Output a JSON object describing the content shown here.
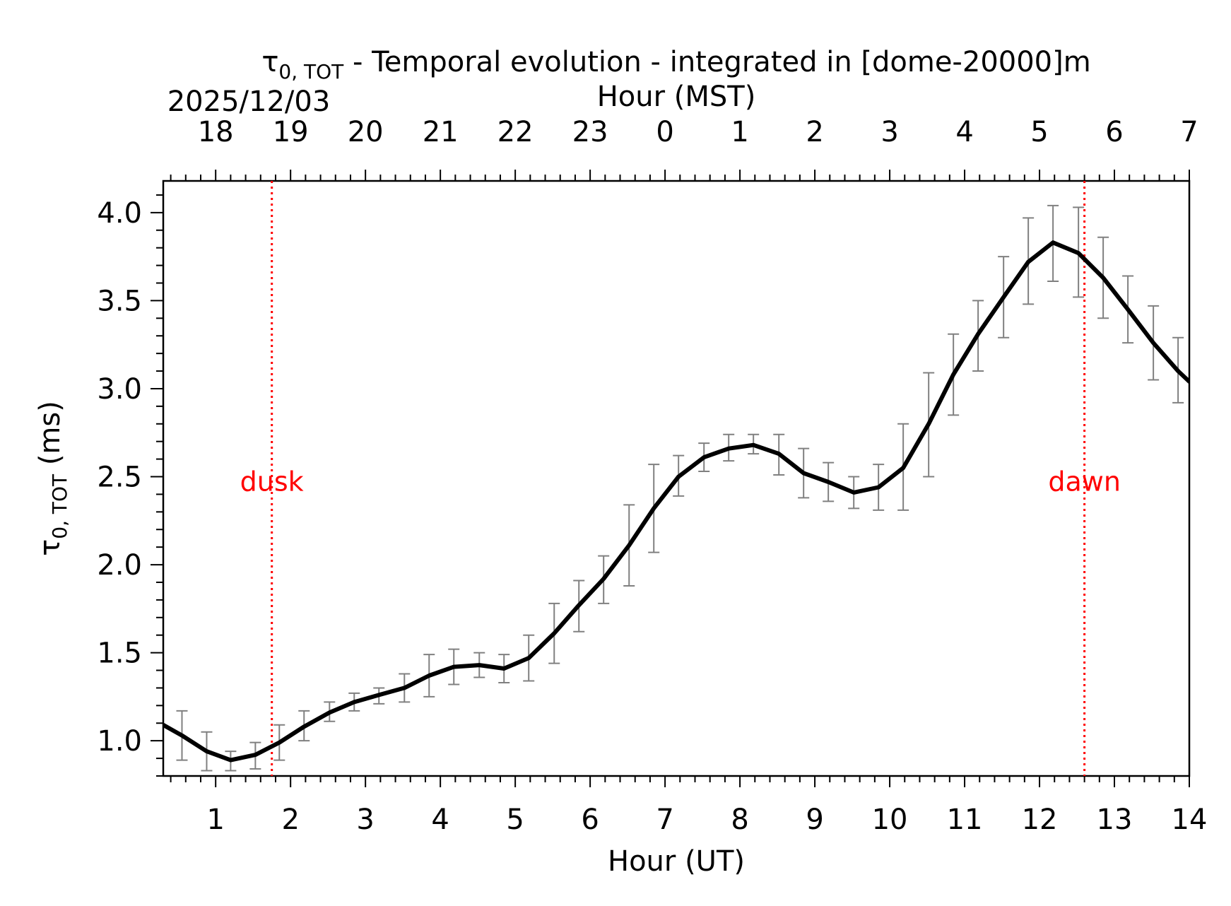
{
  "chart_data": {
    "type": "line",
    "title_prefix": "τ",
    "title_sub": "0, TOT",
    "title_rest": " - Temporal evolution - integrated in [dome-20000]m",
    "date": "2025/12/03",
    "xlabel": "Hour (UT)",
    "xlabel_top": "Hour (MST)",
    "ylabel_prefix": "τ",
    "ylabel_sub": "0, TOT",
    "ylabel_rest": " (ms)",
    "xlim": [
      0.3,
      14.0
    ],
    "ylim": [
      0.8,
      4.18
    ],
    "x_ticks": [
      1,
      2,
      3,
      4,
      5,
      6,
      7,
      8,
      9,
      10,
      11,
      12,
      13,
      14
    ],
    "x_tick_labels": [
      "1",
      "2",
      "3",
      "4",
      "5",
      "6",
      "7",
      "8",
      "9",
      "10",
      "11",
      "12",
      "13",
      "14"
    ],
    "top_ticks": [
      1,
      2,
      3,
      4,
      5,
      6,
      7,
      8,
      9,
      10,
      11,
      12,
      13,
      14
    ],
    "top_tick_labels": [
      "18",
      "19",
      "20",
      "21",
      "22",
      "23",
      "0",
      "1",
      "2",
      "3",
      "4",
      "5",
      "6",
      "7"
    ],
    "y_ticks": [
      1.0,
      1.5,
      2.0,
      2.5,
      3.0,
      3.5,
      4.0
    ],
    "y_tick_labels": [
      "1.0",
      "1.5",
      "2.0",
      "2.5",
      "3.0",
      "3.5",
      "4.0"
    ],
    "series": [
      {
        "name": "tau0_tot",
        "color": "#000000",
        "x": [
          0.3,
          0.55,
          0.88,
          1.2,
          1.53,
          1.85,
          2.18,
          2.52,
          2.85,
          3.18,
          3.52,
          3.85,
          4.18,
          4.52,
          4.85,
          5.18,
          5.52,
          5.85,
          6.18,
          6.52,
          6.85,
          7.18,
          7.52,
          7.85,
          8.18,
          8.52,
          8.85,
          9.18,
          9.52,
          9.85,
          10.18,
          10.52,
          10.85,
          11.18,
          11.52,
          11.85,
          12.18,
          12.52,
          12.85,
          13.18,
          13.52,
          13.85,
          14.0
        ],
        "y": [
          1.09,
          1.03,
          0.94,
          0.89,
          0.92,
          0.99,
          1.08,
          1.16,
          1.22,
          1.26,
          1.3,
          1.37,
          1.42,
          1.43,
          1.41,
          1.47,
          1.61,
          1.77,
          1.92,
          2.11,
          2.32,
          2.5,
          2.61,
          2.66,
          2.68,
          2.63,
          2.52,
          2.47,
          2.41,
          2.44,
          2.55,
          2.8,
          3.08,
          3.31,
          3.52,
          3.72,
          3.83,
          3.77,
          3.63,
          3.45,
          3.26,
          3.1,
          3.04
        ]
      }
    ],
    "error_bars": {
      "color": "#808080",
      "x": [
        0.55,
        0.88,
        1.2,
        1.53,
        1.85,
        2.18,
        2.52,
        2.85,
        3.18,
        3.52,
        3.85,
        4.18,
        4.52,
        4.85,
        5.18,
        5.52,
        5.85,
        6.18,
        6.52,
        6.85,
        7.18,
        7.52,
        7.85,
        8.18,
        8.52,
        8.85,
        9.18,
        9.52,
        9.85,
        10.18,
        10.52,
        10.85,
        11.18,
        11.52,
        11.85,
        12.18,
        12.52,
        12.85,
        13.18,
        13.52,
        13.85
      ],
      "low": [
        0.89,
        0.83,
        0.83,
        0.84,
        0.89,
        1.0,
        1.11,
        1.17,
        1.21,
        1.22,
        1.25,
        1.32,
        1.36,
        1.33,
        1.34,
        1.44,
        1.62,
        1.78,
        1.88,
        2.07,
        2.39,
        2.53,
        2.59,
        2.63,
        2.51,
        2.38,
        2.36,
        2.32,
        2.31,
        2.31,
        2.5,
        2.85,
        3.1,
        3.29,
        3.48,
        3.61,
        3.52,
        3.4,
        3.26,
        3.05,
        2.92
      ],
      "high": [
        1.17,
        1.05,
        0.94,
        0.99,
        1.09,
        1.17,
        1.22,
        1.27,
        1.3,
        1.38,
        1.49,
        1.52,
        1.5,
        1.49,
        1.6,
        1.78,
        1.91,
        2.05,
        2.34,
        2.57,
        2.62,
        2.69,
        2.74,
        2.74,
        2.74,
        2.66,
        2.58,
        2.5,
        2.57,
        2.8,
        3.09,
        3.31,
        3.5,
        3.75,
        3.97,
        4.04,
        4.03,
        3.86,
        3.64,
        3.47,
        3.29
      ]
    },
    "markers": [
      {
        "label": "dusk",
        "x": 1.75,
        "label_y": 2.5,
        "color": "#ff0000",
        "style": "dotted"
      },
      {
        "label": "dawn",
        "x": 12.6,
        "label_y": 2.5,
        "color": "#ff0000",
        "style": "dotted"
      }
    ]
  }
}
